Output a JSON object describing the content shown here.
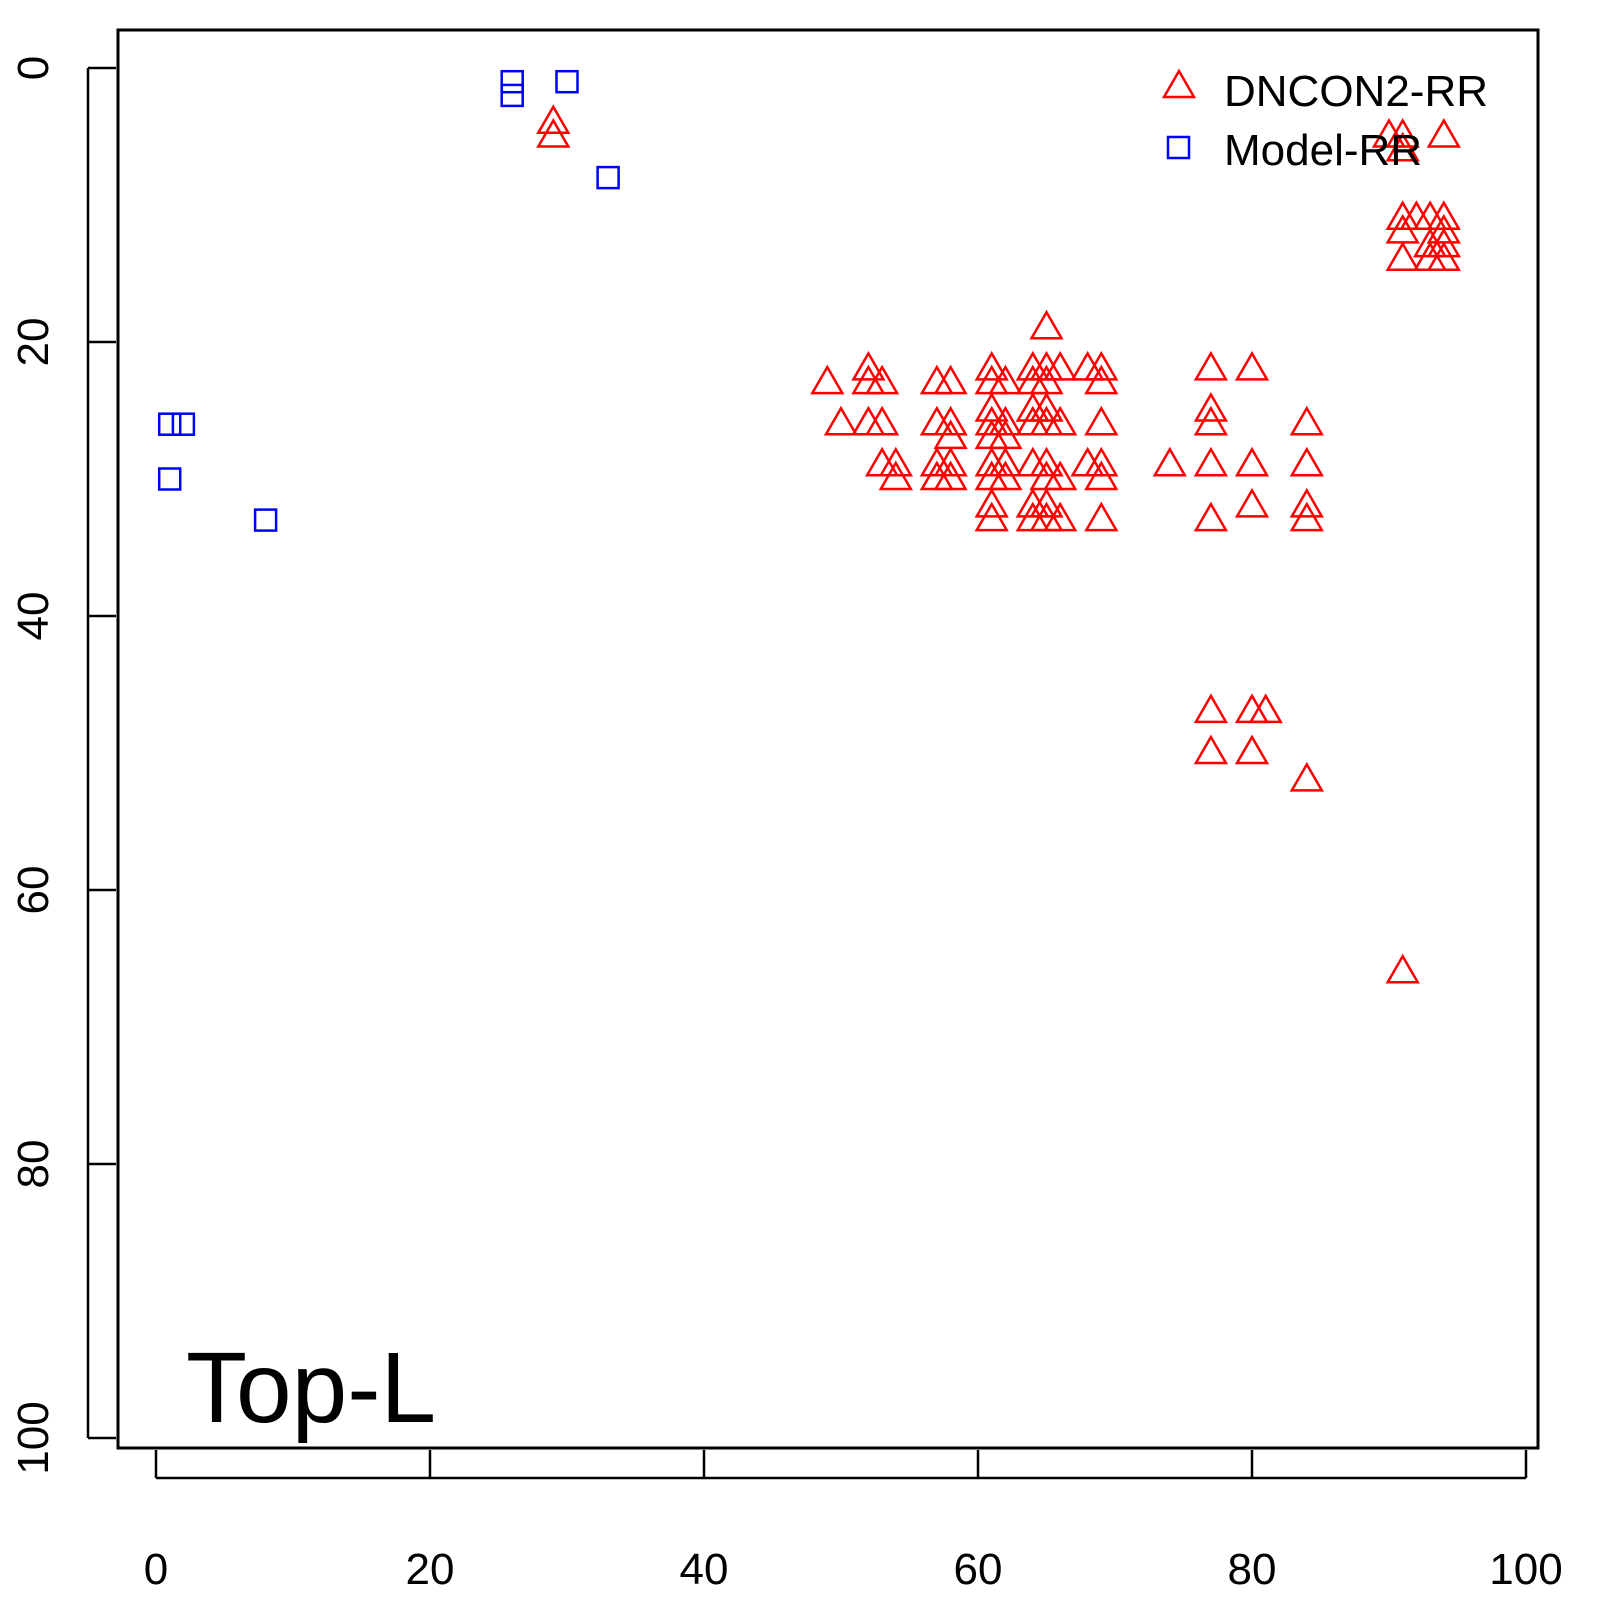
{
  "chart_data": {
    "type": "scatter",
    "title": "",
    "annotation": "Top-L",
    "xlabel": "",
    "ylabel": "",
    "xlim": [
      0,
      100
    ],
    "ylim": [
      0,
      100
    ],
    "y_inverted": true,
    "xticks": [
      "0",
      "20",
      "40",
      "60",
      "80",
      "100"
    ],
    "yticks": [
      "0",
      "20",
      "40",
      "60",
      "80",
      "100"
    ],
    "grid": false,
    "legend_position": "top-right",
    "colors": {
      "DNCON2-RR": "#ff0000",
      "Model-RR": "#0000ff"
    },
    "series": [
      {
        "name": "DNCON2-RR",
        "marker": "triangle",
        "points": [
          [
            29,
            4
          ],
          [
            29,
            5
          ],
          [
            90,
            5
          ],
          [
            91,
            5
          ],
          [
            91,
            6
          ],
          [
            94,
            5
          ],
          [
            91,
            11
          ],
          [
            92,
            11
          ],
          [
            93,
            11
          ],
          [
            94,
            11
          ],
          [
            91,
            12
          ],
          [
            94,
            12
          ],
          [
            93,
            13
          ],
          [
            94,
            13
          ],
          [
            91,
            14
          ],
          [
            93,
            14
          ],
          [
            94,
            14
          ],
          [
            65,
            19
          ],
          [
            52,
            22
          ],
          [
            61,
            22
          ],
          [
            64,
            22
          ],
          [
            65,
            22
          ],
          [
            66,
            22
          ],
          [
            68,
            22
          ],
          [
            69,
            22
          ],
          [
            77,
            22
          ],
          [
            80,
            22
          ],
          [
            49,
            23
          ],
          [
            52,
            23
          ],
          [
            53,
            23
          ],
          [
            57,
            23
          ],
          [
            58,
            23
          ],
          [
            61,
            23
          ],
          [
            62,
            23
          ],
          [
            64,
            23
          ],
          [
            65,
            23
          ],
          [
            69,
            23
          ],
          [
            61,
            25
          ],
          [
            64,
            25
          ],
          [
            65,
            25
          ],
          [
            77,
            25
          ],
          [
            50,
            26
          ],
          [
            52,
            26
          ],
          [
            53,
            26
          ],
          [
            57,
            26
          ],
          [
            58,
            26
          ],
          [
            61,
            26
          ],
          [
            62,
            26
          ],
          [
            64,
            26
          ],
          [
            65,
            26
          ],
          [
            66,
            26
          ],
          [
            69,
            26
          ],
          [
            77,
            26
          ],
          [
            84,
            26
          ],
          [
            58,
            27
          ],
          [
            61,
            27
          ],
          [
            62,
            27
          ],
          [
            53,
            29
          ],
          [
            54,
            29
          ],
          [
            57,
            29
          ],
          [
            58,
            29
          ],
          [
            61,
            29
          ],
          [
            62,
            29
          ],
          [
            64,
            29
          ],
          [
            65,
            29
          ],
          [
            68,
            29
          ],
          [
            69,
            29
          ],
          [
            74,
            29
          ],
          [
            77,
            29
          ],
          [
            80,
            29
          ],
          [
            84,
            29
          ],
          [
            54,
            30
          ],
          [
            57,
            30
          ],
          [
            58,
            30
          ],
          [
            61,
            30
          ],
          [
            62,
            30
          ],
          [
            65,
            30
          ],
          [
            66,
            30
          ],
          [
            69,
            30
          ],
          [
            61,
            32
          ],
          [
            64,
            32
          ],
          [
            65,
            32
          ],
          [
            80,
            32
          ],
          [
            84,
            32
          ],
          [
            61,
            33
          ],
          [
            64,
            33
          ],
          [
            65,
            33
          ],
          [
            66,
            33
          ],
          [
            69,
            33
          ],
          [
            77,
            33
          ],
          [
            84,
            33
          ],
          [
            77,
            47
          ],
          [
            80,
            47
          ],
          [
            81,
            47
          ],
          [
            77,
            50
          ],
          [
            80,
            50
          ],
          [
            84,
            52
          ],
          [
            91,
            66
          ]
        ]
      },
      {
        "name": "Model-RR",
        "marker": "square",
        "points": [
          [
            26,
            1
          ],
          [
            26,
            2
          ],
          [
            30,
            1
          ],
          [
            33,
            8
          ],
          [
            1,
            26
          ],
          [
            2,
            26
          ],
          [
            1,
            30
          ],
          [
            8,
            33
          ]
        ]
      }
    ]
  }
}
